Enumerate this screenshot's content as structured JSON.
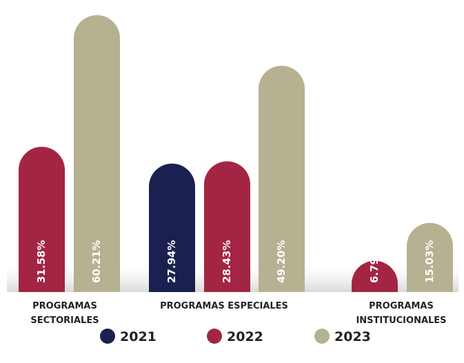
{
  "chart_data": {
    "type": "bar",
    "title": "",
    "xlabel": "",
    "ylabel": "",
    "ylim": [
      0,
      62
    ],
    "grid": false,
    "legend_position": "bottom",
    "categories": [
      [
        "PROGRAMAS",
        "SECTORIALES"
      ],
      [
        "PROGRAMAS ESPECIALES"
      ],
      [
        "PROGRAMAS",
        "INSTITUCIONALES"
      ]
    ],
    "series": [
      {
        "name": "2021",
        "color": "#1a2150",
        "values": [
          null,
          27.94,
          null
        ],
        "labels": [
          "",
          "27.94%",
          ""
        ]
      },
      {
        "name": "2022",
        "color": "#a32543",
        "values": [
          31.58,
          28.43,
          6.79
        ],
        "labels": [
          "31.58%",
          "28.43%",
          "6.79%"
        ]
      },
      {
        "name": "2023",
        "color": "#b5b191",
        "values": [
          60.21,
          49.2,
          15.03
        ],
        "labels": [
          "60.21%",
          "49.20%",
          "15.03%"
        ]
      }
    ]
  }
}
